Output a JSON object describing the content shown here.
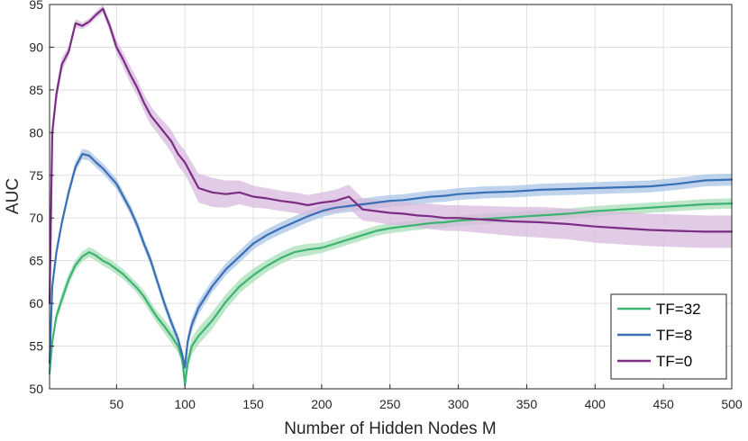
{
  "chart_data": {
    "type": "line",
    "xlabel": "Number of Hidden Nodes M",
    "ylabel": "AUC",
    "xlim": [
      1,
      500
    ],
    "ylim": [
      50,
      95
    ],
    "xticks": [
      50,
      100,
      150,
      200,
      250,
      300,
      350,
      400,
      450,
      500
    ],
    "yticks": [
      50,
      55,
      60,
      65,
      70,
      75,
      80,
      85,
      90,
      95
    ],
    "grid": true,
    "legend_position": "bottom-right",
    "series": [
      {
        "name": "TF=32",
        "color": "#3cb371",
        "band_color": "#a8dfb8",
        "x": [
          1,
          3,
          6,
          10,
          15,
          20,
          25,
          30,
          35,
          40,
          45,
          50,
          55,
          60,
          65,
          70,
          75,
          80,
          85,
          90,
          95,
          98,
          100,
          102,
          105,
          110,
          120,
          130,
          140,
          150,
          160,
          170,
          180,
          190,
          200,
          210,
          220,
          230,
          240,
          250,
          260,
          270,
          280,
          290,
          300,
          320,
          340,
          360,
          380,
          400,
          420,
          440,
          460,
          480,
          500
        ],
        "y": [
          51.8,
          55.5,
          58.5,
          60.5,
          62.8,
          64.5,
          65.5,
          66.0,
          65.6,
          65.0,
          64.6,
          64.0,
          63.4,
          62.6,
          61.8,
          60.8,
          59.5,
          58.3,
          57.3,
          56.2,
          55.0,
          53.5,
          50.5,
          53.0,
          55.0,
          56.2,
          58.0,
          60.2,
          62.0,
          63.3,
          64.4,
          65.3,
          66.0,
          66.3,
          66.5,
          67.0,
          67.5,
          68.0,
          68.5,
          68.8,
          69.0,
          69.2,
          69.4,
          69.5,
          69.7,
          69.9,
          70.1,
          70.3,
          70.5,
          70.8,
          71.0,
          71.2,
          71.4,
          71.6,
          71.7
        ],
        "band": [
          0.4,
          0.6,
          0.6,
          0.7,
          0.7,
          0.6,
          0.6,
          0.6,
          0.6,
          0.6,
          0.6,
          0.6,
          0.6,
          0.6,
          0.6,
          0.7,
          0.7,
          0.7,
          0.8,
          0.8,
          0.8,
          0.8,
          0.8,
          0.9,
          1.0,
          1.0,
          1.0,
          0.9,
          0.8,
          0.8,
          0.7,
          0.7,
          0.7,
          0.7,
          0.6,
          0.6,
          0.6,
          0.6,
          0.6,
          0.6,
          0.6,
          0.6,
          0.6,
          0.6,
          0.6,
          0.6,
          0.6,
          0.6,
          0.6,
          0.6,
          0.6,
          0.6,
          0.6,
          0.6,
          0.6
        ]
      },
      {
        "name": "TF=8",
        "color": "#3a6fb5",
        "band_color": "#a9c5e6",
        "x": [
          1,
          3,
          6,
          10,
          15,
          20,
          25,
          30,
          35,
          40,
          45,
          50,
          55,
          60,
          65,
          70,
          75,
          80,
          85,
          90,
          95,
          98,
          100,
          102,
          105,
          110,
          120,
          130,
          140,
          150,
          160,
          170,
          180,
          190,
          200,
          210,
          220,
          230,
          240,
          250,
          260,
          270,
          280,
          290,
          300,
          320,
          340,
          360,
          380,
          400,
          420,
          440,
          460,
          480,
          500
        ],
        "y": [
          53.0,
          62.0,
          66.0,
          69.5,
          73.0,
          76.0,
          77.5,
          77.3,
          76.5,
          75.8,
          74.9,
          74.0,
          72.5,
          71.0,
          69.2,
          67.0,
          65.0,
          62.5,
          60.0,
          57.8,
          55.8,
          54.0,
          52.5,
          55.5,
          57.5,
          59.5,
          62.0,
          64.0,
          65.5,
          67.0,
          68.0,
          68.8,
          69.5,
          70.2,
          70.8,
          71.2,
          71.4,
          71.6,
          71.8,
          72.0,
          72.1,
          72.3,
          72.5,
          72.6,
          72.8,
          73.0,
          73.1,
          73.3,
          73.4,
          73.5,
          73.6,
          73.7,
          74.0,
          74.4,
          74.5
        ],
        "band": [
          0.5,
          0.6,
          0.6,
          0.6,
          0.6,
          0.6,
          0.6,
          0.6,
          0.6,
          0.6,
          0.6,
          0.6,
          0.6,
          0.6,
          0.6,
          0.6,
          0.6,
          0.6,
          0.6,
          0.6,
          0.6,
          0.6,
          0.7,
          0.8,
          0.8,
          0.8,
          0.7,
          0.7,
          0.7,
          0.7,
          0.7,
          0.7,
          0.7,
          0.7,
          0.7,
          0.7,
          0.7,
          0.7,
          0.7,
          0.7,
          0.7,
          0.7,
          0.7,
          0.7,
          0.7,
          0.7,
          0.7,
          0.7,
          0.7,
          0.7,
          0.7,
          0.7,
          0.7,
          0.7,
          0.7
        ]
      },
      {
        "name": "TF=0",
        "color": "#7b2d83",
        "band_color": "#d8b9dd",
        "x": [
          1,
          3,
          6,
          10,
          15,
          20,
          25,
          30,
          35,
          40,
          45,
          50,
          55,
          60,
          65,
          70,
          75,
          80,
          85,
          90,
          95,
          100,
          105,
          110,
          120,
          130,
          140,
          150,
          160,
          170,
          180,
          190,
          200,
          210,
          220,
          230,
          240,
          250,
          260,
          270,
          280,
          290,
          300,
          320,
          340,
          360,
          380,
          400,
          420,
          440,
          460,
          480,
          500
        ],
        "y": [
          60.0,
          80.0,
          84.5,
          88.0,
          89.5,
          92.8,
          92.5,
          93.0,
          93.8,
          94.5,
          92.5,
          90.0,
          88.5,
          86.8,
          85.3,
          83.5,
          82.0,
          81.0,
          80.0,
          79.0,
          77.5,
          76.5,
          75.0,
          73.5,
          73.0,
          72.8,
          73.0,
          72.5,
          72.3,
          72.0,
          71.8,
          71.5,
          71.8,
          72.0,
          72.5,
          71.0,
          70.8,
          70.6,
          70.5,
          70.3,
          70.2,
          70.0,
          70.0,
          69.8,
          69.6,
          69.5,
          69.3,
          69.0,
          68.8,
          68.6,
          68.5,
          68.4,
          68.4
        ],
        "band": [
          1.0,
          1.0,
          1.0,
          0.8,
          0.6,
          0.5,
          0.4,
          0.4,
          0.4,
          0.5,
          0.6,
          0.8,
          0.9,
          1.0,
          1.0,
          1.0,
          1.1,
          1.1,
          1.2,
          1.3,
          1.4,
          1.4,
          1.5,
          1.7,
          1.7,
          1.6,
          1.4,
          1.3,
          1.2,
          1.2,
          1.2,
          1.2,
          1.2,
          1.3,
          1.4,
          1.3,
          1.3,
          1.4,
          1.4,
          1.4,
          1.5,
          1.5,
          1.5,
          1.6,
          1.7,
          1.8,
          1.8,
          1.9,
          1.9,
          1.9,
          1.9,
          1.9,
          1.9
        ]
      }
    ]
  }
}
